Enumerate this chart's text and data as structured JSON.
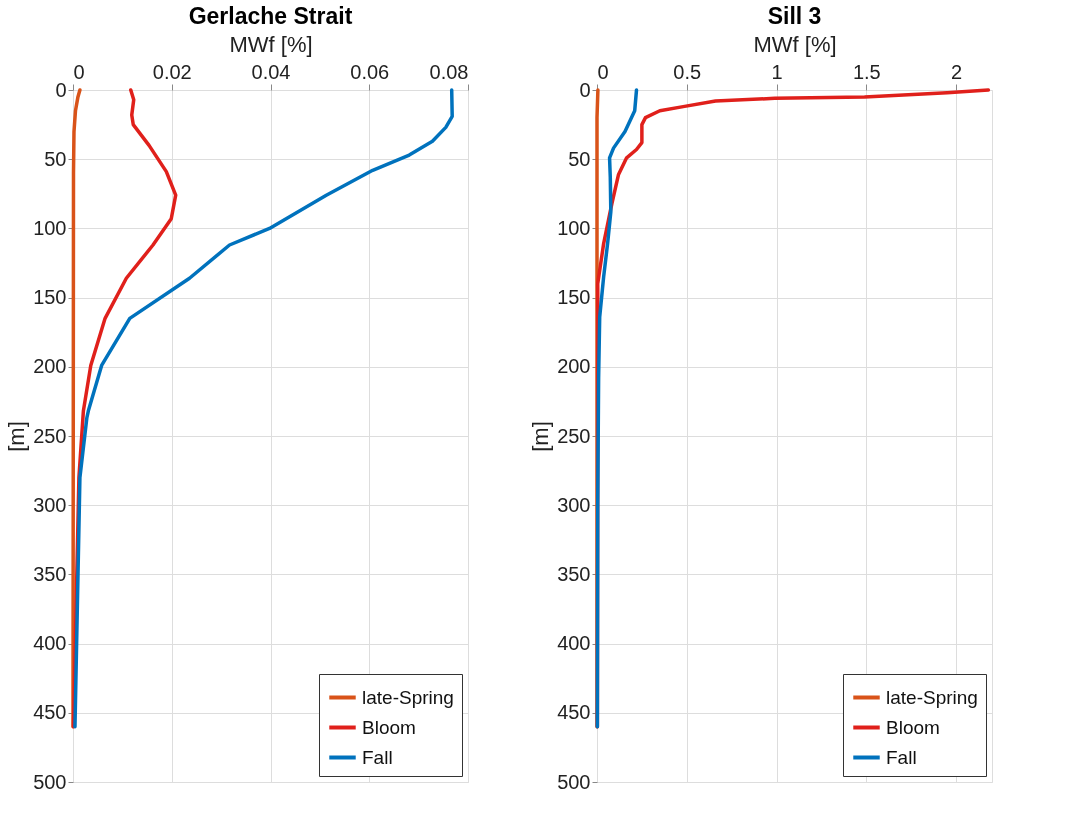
{
  "chart_data": [
    {
      "type": "line",
      "title": "Gerlache Strait",
      "xlabel": "MWf [%]",
      "ylabel": "[m]",
      "xlim": [
        0,
        0.08
      ],
      "xticks": [
        0,
        0.02,
        0.04,
        0.06,
        0.08
      ],
      "ylim": [
        500,
        0
      ],
      "yticks": [
        0,
        50,
        100,
        150,
        200,
        250,
        300,
        350,
        400,
        450,
        500
      ],
      "grid": true,
      "legend": "bottom right",
      "line_style": "solid",
      "marker": "none",
      "series": [
        {
          "name": "late-Spring",
          "color": "#d95319",
          "x": [
            0.0014,
            0.001,
            0.0005,
            0.0002,
            0.0001,
            0
          ],
          "values": [
            0,
            5,
            15,
            30,
            60,
            460
          ]
        },
        {
          "name": "Bloom",
          "color": "#e0201b",
          "x": [
            0.0117,
            0.0123,
            0.0119,
            0.0122,
            0.0154,
            0.0189,
            0.0208,
            0.0199,
            0.0162,
            0.0108,
            0.0065,
            0.0036,
            0.0021,
            0.0012,
            0.0001
          ],
          "values": [
            0,
            7,
            18,
            25,
            40,
            59,
            76,
            93,
            112,
            136,
            165,
            199,
            232,
            280,
            460
          ]
        },
        {
          "name": "Fall",
          "color": "#0072bd",
          "x": [
            0.0767,
            0.0768,
            0.0755,
            0.0728,
            0.0681,
            0.0607,
            0.0513,
            0.0398,
            0.0317,
            0.0236,
            0.0115,
            0.0058,
            0.0031,
            0.0028,
            0.0014,
            0.0004
          ],
          "values": [
            0,
            19,
            27,
            37,
            47,
            58,
            76,
            100,
            112,
            136,
            165,
            199,
            232,
            237,
            280,
            460
          ]
        }
      ]
    },
    {
      "type": "line",
      "title": "Sill 3",
      "xlabel": "MWf [%]",
      "ylabel": "[m]",
      "xlim": [
        0,
        2.2
      ],
      "xticks": [
        0,
        0.5,
        1,
        1.5,
        2
      ],
      "ylim": [
        500,
        0
      ],
      "yticks": [
        0,
        50,
        100,
        150,
        200,
        250,
        300,
        350,
        400,
        450,
        500
      ],
      "grid": true,
      "legend": "bottom right",
      "line_style": "solid",
      "marker": "none",
      "series": [
        {
          "name": "late-Spring",
          "color": "#d95319",
          "x": [
            0.005,
            0,
            0
          ],
          "values": [
            0,
            20,
            460
          ]
        },
        {
          "name": "Bloom",
          "color": "#e0201b",
          "x": [
            2.18,
            1.95,
            1.49,
            0.99,
            0.66,
            0.48,
            0.35,
            0.27,
            0.25,
            0.25,
            0.22,
            0.165,
            0.12,
            0.083,
            0.037,
            0.004,
            0.005,
            0.002
          ],
          "values": [
            0,
            2,
            5,
            6,
            8,
            12,
            15,
            20,
            25,
            38,
            43,
            49,
            61,
            82,
            111,
            140,
            170,
            460
          ]
        },
        {
          "name": "Fall",
          "color": "#0072bd",
          "x": [
            0.22,
            0.21,
            0.156,
            0.092,
            0.07,
            0.074,
            0.077,
            0.059,
            0.037,
            0.015,
            0.009,
            0.004,
            0.002
          ],
          "values": [
            0,
            15,
            30,
            42,
            49,
            63,
            88,
            111,
            135,
            164,
            208,
            300,
            460
          ]
        }
      ]
    }
  ]
}
